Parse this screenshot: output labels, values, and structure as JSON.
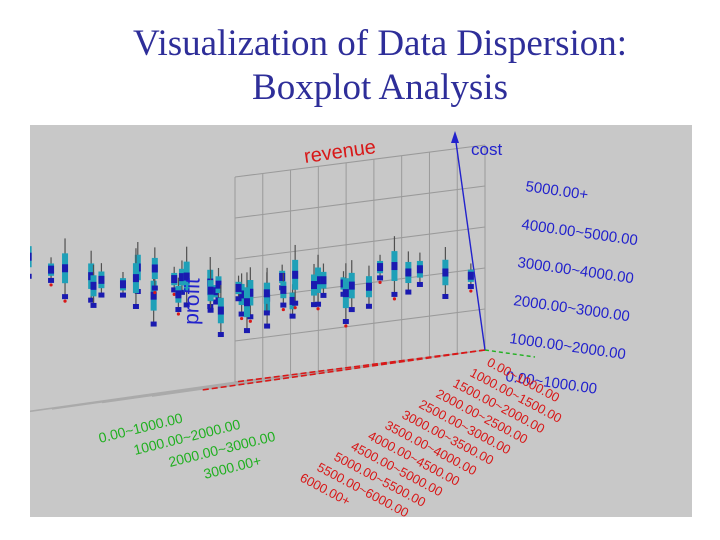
{
  "slide": {
    "title_line1": "Visualization of Data Dispersion:",
    "title_line2": "Boxplot Analysis"
  },
  "chart_data": {
    "type": "boxplot-3d",
    "axes": {
      "revenue": {
        "label": "revenue",
        "color": "#d81818",
        "bins": [
          "0.00~1000.00",
          "1000.00~1500.00",
          "1500.00~2000.00",
          "2000.00~2500.00",
          "2500.00~3000.00",
          "3000.00~3500.00",
          "3500.00~4000.00",
          "4000.00~4500.00",
          "4500.00~5000.00",
          "5000.00~5500.00",
          "5500.00~6000.00",
          "6000.00+"
        ]
      },
      "cost": {
        "label": "cost",
        "color": "#2222cc",
        "bins": [
          "0.00~1000.00",
          "1000.00~2000.00",
          "2000.00~3000.00",
          "3000.00~4000.00",
          "4000.00~5000.00",
          "5000.00+"
        ]
      },
      "profit": {
        "label": "profit",
        "color": "#2222cc",
        "bins": [
          "0.00~1000.00",
          "1000.00~2000.00",
          "2000.00~3000.00",
          "3000.00+"
        ]
      }
    },
    "bin_label_color": "#20b020",
    "background": "#c8c8c8",
    "grid": true
  }
}
